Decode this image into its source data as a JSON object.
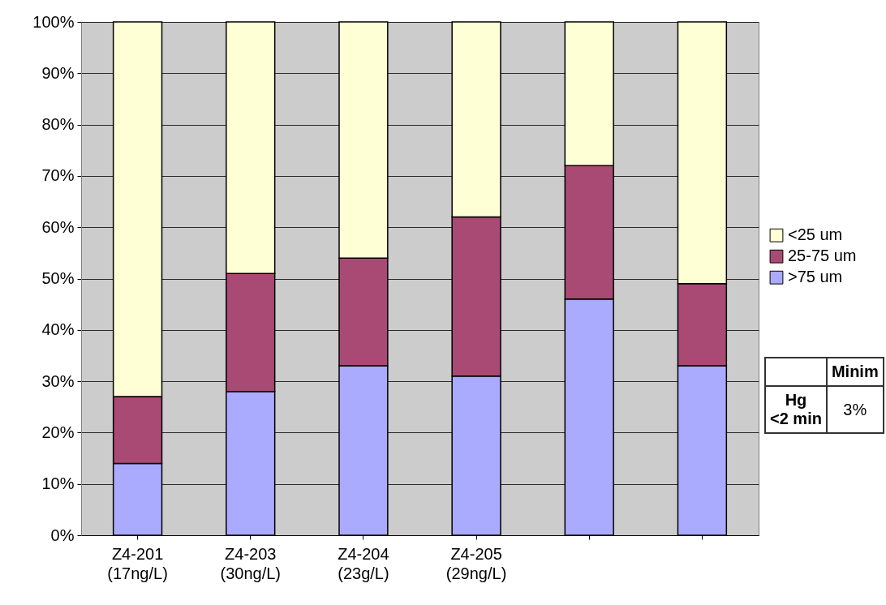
{
  "chart_data": {
    "type": "bar",
    "stacked": true,
    "categories": [
      "Z4-201\n(17ng/L)",
      "Z4-203\n(30ng/L)",
      "Z4-204\n(23g/L)",
      "Z4-205\n(29ng/L)",
      null,
      null
    ],
    "series": [
      {
        "name": ">75 um",
        "color": "#aaaaff",
        "values": [
          14,
          28,
          33,
          31,
          46,
          33
        ]
      },
      {
        "name": "25-75 um",
        "color": "#a94a74",
        "values": [
          13,
          23,
          21,
          31,
          26,
          16
        ]
      },
      {
        "name": "<25 um",
        "color": "#ffffd5",
        "values": [
          73,
          49,
          46,
          38,
          28,
          51
        ]
      }
    ],
    "ylim": [
      0,
      100
    ],
    "yticks": [
      {
        "value": 0,
        "label": "0%"
      },
      {
        "value": 10,
        "label": "10%"
      },
      {
        "value": 20,
        "label": "20%"
      },
      {
        "value": 30,
        "label": "30%"
      },
      {
        "value": 40,
        "label": "40%"
      },
      {
        "value": 50,
        "label": "50%"
      },
      {
        "value": 60,
        "label": "60%"
      },
      {
        "value": 70,
        "label": "70%"
      },
      {
        "value": 80,
        "label": "80%"
      },
      {
        "value": 90,
        "label": "90%"
      },
      {
        "value": 100,
        "label": "100%"
      }
    ],
    "grid": "y",
    "legend": "right",
    "annotations": [
      "Minim",
      "Hg",
      "<2 min",
      "3%"
    ]
  }
}
